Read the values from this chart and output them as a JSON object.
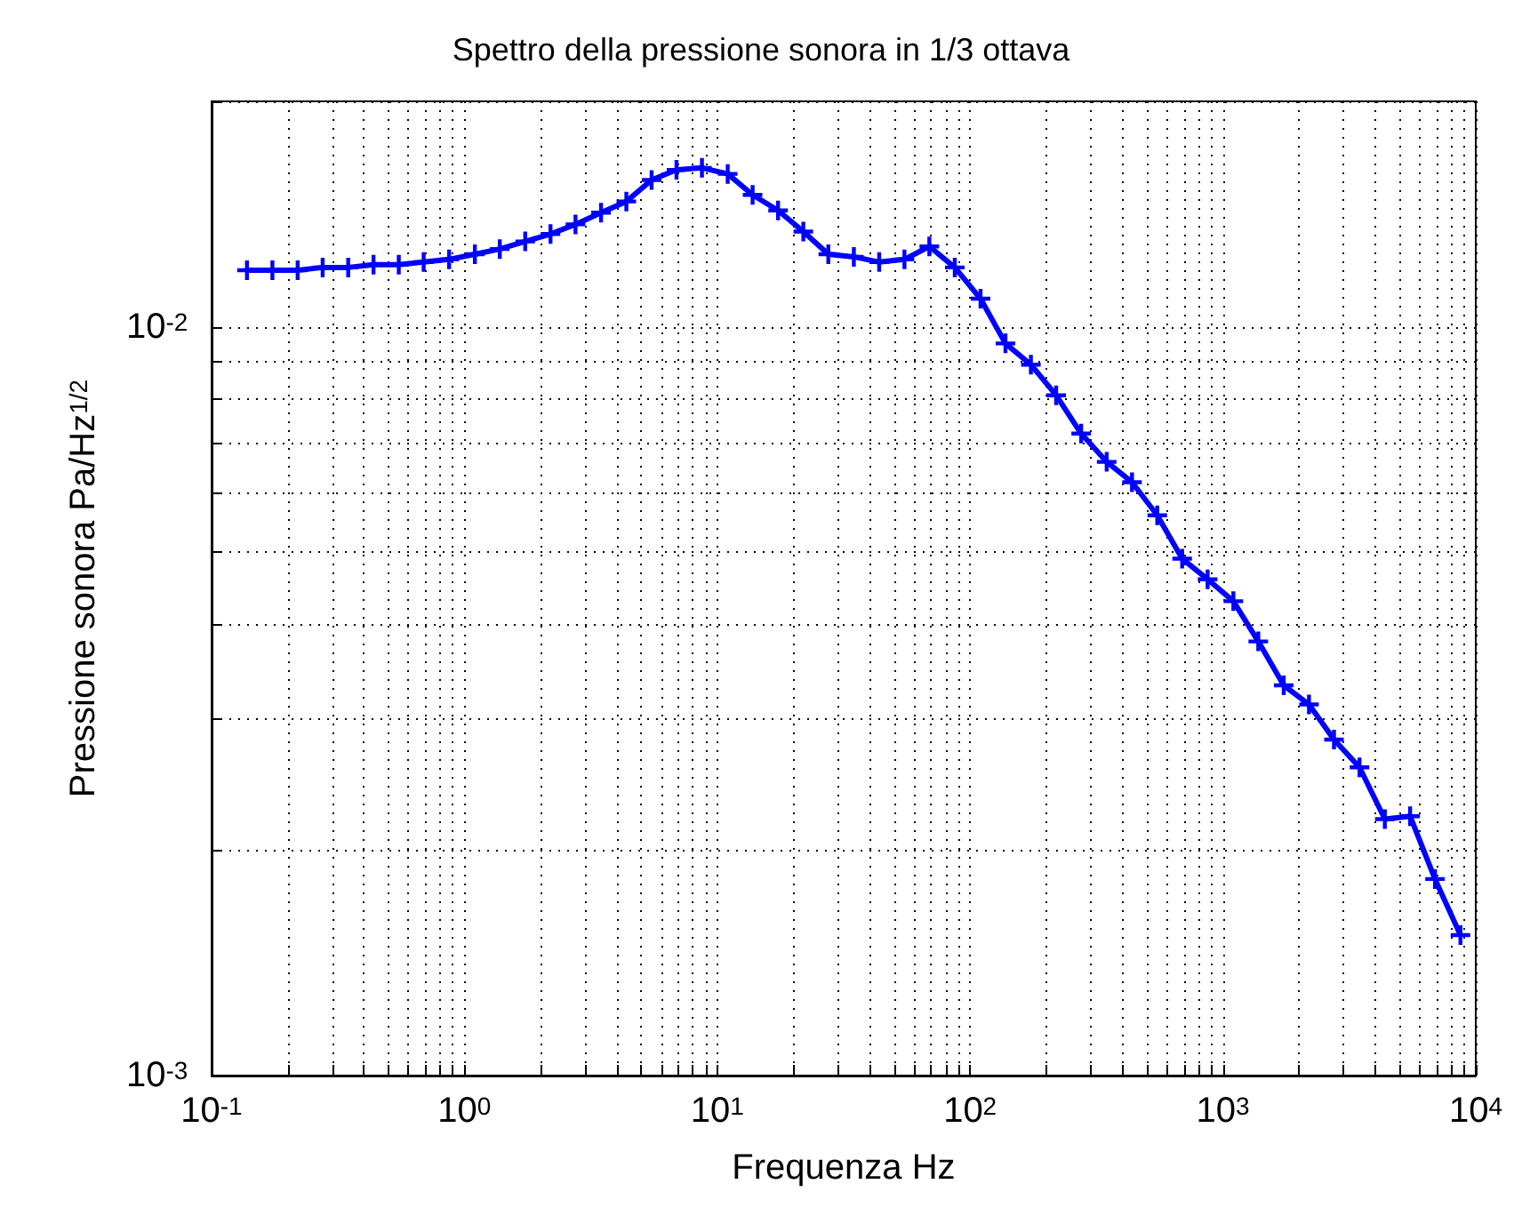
{
  "chart_data": {
    "type": "line",
    "title": "Spettro della pressione sonora in 1/3 ottava",
    "xlabel": "Frequenza Hz",
    "ylabel": "Pressione sonora Pa/Hz$^{1/2}$",
    "x": [
      0.138,
      0.174,
      0.219,
      0.275,
      0.347,
      0.437,
      0.55,
      0.69,
      0.87,
      1.1,
      1.38,
      1.74,
      2.19,
      2.75,
      3.47,
      4.37,
      5.5,
      6.9,
      8.7,
      11,
      13.8,
      17.4,
      21.9,
      27.5,
      34.7,
      43.7,
      55,
      69,
      87,
      110,
      138,
      174,
      219,
      275,
      347,
      437,
      550,
      690,
      870,
      1100,
      1380,
      1740,
      2190,
      2750,
      3470,
      4370,
      5500,
      6900,
      8700
    ],
    "series": [
      {
        "color": "#0000ff",
        "values": [
          0.0119,
          0.0119,
          0.0119,
          0.012,
          0.012,
          0.0121,
          0.0121,
          0.0122,
          0.0123,
          0.0125,
          0.0127,
          0.013,
          0.0133,
          0.0137,
          0.0142,
          0.0147,
          0.0157,
          0.0162,
          0.0163,
          0.016,
          0.015,
          0.0143,
          0.0134,
          0.0125,
          0.0124,
          0.0122,
          0.0123,
          0.0128,
          0.012,
          0.0109,
          0.0095,
          0.0089,
          0.0081,
          0.0072,
          0.0066,
          0.0062,
          0.0056,
          0.0049,
          0.0046,
          0.0043,
          0.0038,
          0.00332,
          0.00313,
          0.00281,
          0.00258,
          0.0022,
          0.00222,
          0.00183,
          0.00154
        ]
      }
    ],
    "log": "xy",
    "grid": true,
    "marker": "cross",
    "line_style": "solid",
    "xlim": [
      0.1,
      10000
    ],
    "xticks": [
      {
        "value": 0.1,
        "label": "10$^{-1}$"
      },
      {
        "value": 0.2,
        "label": null
      },
      {
        "value": 0.3,
        "label": null
      },
      {
        "value": 0.4,
        "label": null
      },
      {
        "value": 0.5,
        "label": null
      },
      {
        "value": 0.6,
        "label": null
      },
      {
        "value": 0.7,
        "label": null
      },
      {
        "value": 0.8,
        "label": null
      },
      {
        "value": 0.9,
        "label": null
      },
      {
        "value": 1,
        "label": "10$^{0}$"
      },
      {
        "value": 2,
        "label": null
      },
      {
        "value": 3,
        "label": null
      },
      {
        "value": 4,
        "label": null
      },
      {
        "value": 5,
        "label": null
      },
      {
        "value": 6,
        "label": null
      },
      {
        "value": 7,
        "label": null
      },
      {
        "value": 8,
        "label": null
      },
      {
        "value": 9,
        "label": null
      },
      {
        "value": 10,
        "label": "10$^{1}$"
      },
      {
        "value": 20,
        "label": null
      },
      {
        "value": 30,
        "label": null
      },
      {
        "value": 40,
        "label": null
      },
      {
        "value": 50,
        "label": null
      },
      {
        "value": 60,
        "label": null
      },
      {
        "value": 70,
        "label": null
      },
      {
        "value": 80,
        "label": null
      },
      {
        "value": 90,
        "label": null
      },
      {
        "value": 100,
        "label": "10$^{2}$"
      },
      {
        "value": 200,
        "label": null
      },
      {
        "value": 300,
        "label": null
      },
      {
        "value": 400,
        "label": null
      },
      {
        "value": 500,
        "label": null
      },
      {
        "value": 600,
        "label": null
      },
      {
        "value": 700,
        "label": null
      },
      {
        "value": 800,
        "label": null
      },
      {
        "value": 900,
        "label": null
      },
      {
        "value": 1000,
        "label": "10$^{3}$"
      },
      {
        "value": 2000,
        "label": null
      },
      {
        "value": 3000,
        "label": null
      },
      {
        "value": 4000,
        "label": null
      },
      {
        "value": 5000,
        "label": null
      },
      {
        "value": 6000,
        "label": null
      },
      {
        "value": 7000,
        "label": null
      },
      {
        "value": 8000,
        "label": null
      },
      {
        "value": 9000,
        "label": null
      },
      {
        "value": 10000,
        "label": "10$^{4}$"
      }
    ],
    "ylim": [
      0.001,
      0.02
    ],
    "yticks": [
      {
        "value": 0.001,
        "label": "10$^{-3}$"
      },
      {
        "value": 0.002,
        "label": null
      },
      {
        "value": 0.003,
        "label": null
      },
      {
        "value": 0.004,
        "label": null
      },
      {
        "value": 0.005,
        "label": null
      },
      {
        "value": 0.006,
        "label": null
      },
      {
        "value": 0.007,
        "label": null
      },
      {
        "value": 0.008,
        "label": null
      },
      {
        "value": 0.009,
        "label": null
      },
      {
        "value": 0.01,
        "label": "10$^{-2}$"
      },
      {
        "value": 0.02,
        "label": null
      }
    ]
  }
}
